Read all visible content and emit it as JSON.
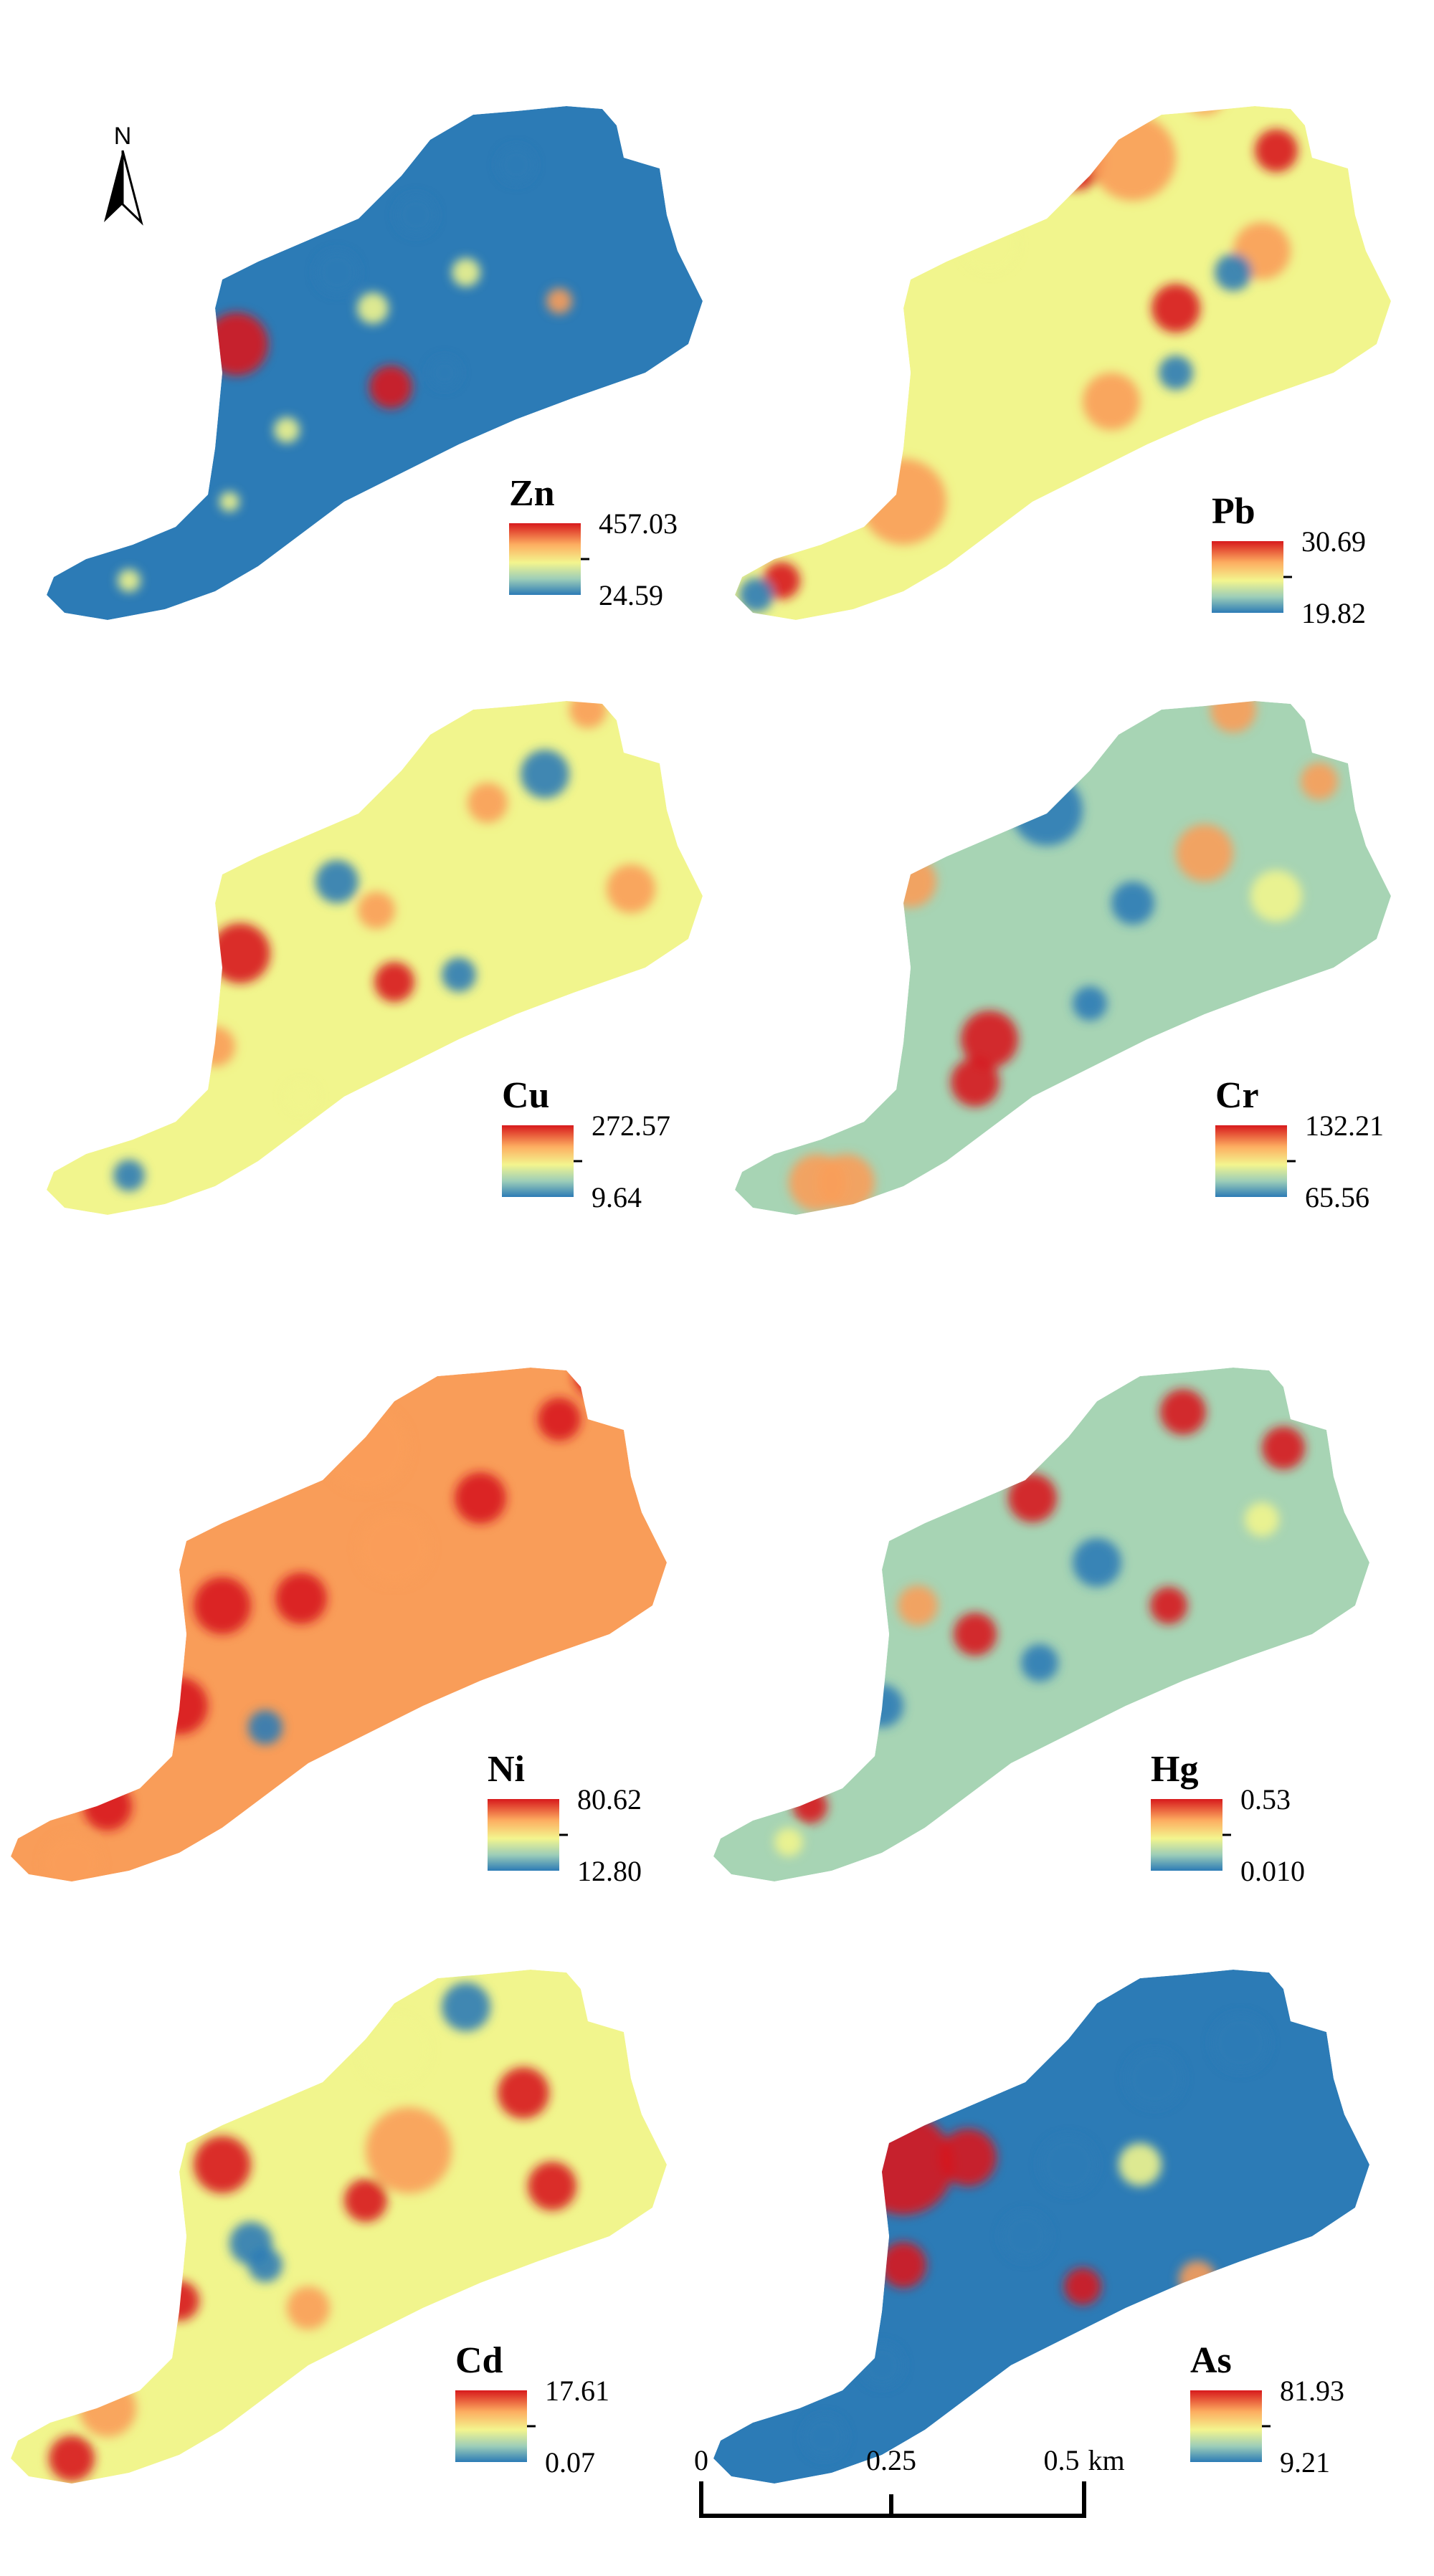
{
  "figure": {
    "north_label": "N"
  },
  "scale_bar": {
    "ticks": [
      "0",
      "0.25",
      "0.5"
    ],
    "unit": "km"
  },
  "colors": {
    "high": "#d7191c",
    "mid_high": "#f99d59",
    "mid": "#f1f58d",
    "mid_low": "#a7d4b4",
    "low": "#2c7bb6"
  },
  "panels": [
    {
      "element": "Zn",
      "max": "457.03",
      "min": "24.59",
      "background": "low"
    },
    {
      "element": "Pb",
      "max": "30.69",
      "min": "19.82",
      "background": "mid"
    },
    {
      "element": "Cu",
      "max": "272.57",
      "min": "9.64",
      "background": "mid"
    },
    {
      "element": "Cr",
      "max": "132.21",
      "min": "65.56",
      "background": "mid_low"
    },
    {
      "element": "Ni",
      "max": "80.62",
      "min": "12.80",
      "background": "mid_high"
    },
    {
      "element": "Hg",
      "max": "0.53",
      "min": "0.010",
      "background": "mid_low"
    },
    {
      "element": "Cd",
      "max": "17.61",
      "min": "0.07",
      "background": "mid"
    },
    {
      "element": "As",
      "max": "81.93",
      "min": "9.21",
      "background": "low"
    }
  ]
}
